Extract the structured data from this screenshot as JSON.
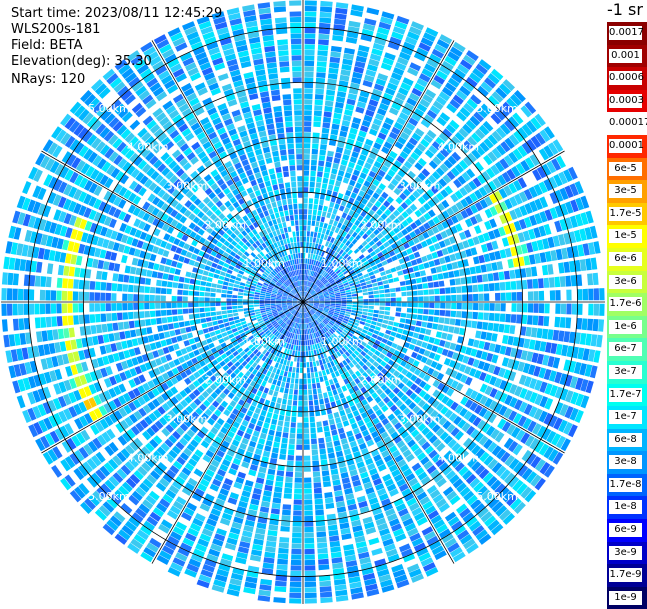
{
  "info": {
    "start_time": "Start time: 2023/08/11 12:45:29",
    "instrument": "WLS200s-181",
    "field": "Field: BETA",
    "elevation": "Elevation(deg): 35.30",
    "nrays": "NRays: 120"
  },
  "colorbar": {
    "unit_label": "-1 sr",
    "entries": [
      {
        "label": "0.0017",
        "color": "#8b0000"
      },
      {
        "label": "0.001",
        "color": "#a00000"
      },
      {
        "label": "0.0006",
        "color": "#c80000"
      },
      {
        "label": "0.0003",
        "color": "#e60000"
      },
      {
        "label": "0.00017",
        "color": "#ffffff"
      },
      {
        "label": "0.0001",
        "color": "#ff2800"
      },
      {
        "label": "6e-5",
        "color": "#ff6e00"
      },
      {
        "label": "3e-5",
        "color": "#ffa000"
      },
      {
        "label": "1.7e-5",
        "color": "#ffc800"
      },
      {
        "label": "1e-5",
        "color": "#ffff00"
      },
      {
        "label": "6e-6",
        "color": "#e6ff1e"
      },
      {
        "label": "3e-6",
        "color": "#c8ff3c"
      },
      {
        "label": "1.7e-6",
        "color": "#a0ff64"
      },
      {
        "label": "1e-6",
        "color": "#78ff8c"
      },
      {
        "label": "6e-7",
        "color": "#50ffb4"
      },
      {
        "label": "3e-7",
        "color": "#28ffd2"
      },
      {
        "label": "1.7e-7",
        "color": "#00fff0"
      },
      {
        "label": "1e-7",
        "color": "#00e6ff"
      },
      {
        "label": "6e-8",
        "color": "#00b4ff"
      },
      {
        "label": "3e-8",
        "color": "#0096ff"
      },
      {
        "label": "1.7e-8",
        "color": "#0064ff"
      },
      {
        "label": "1e-8",
        "color": "#0032ff"
      },
      {
        "label": "6e-9",
        "color": "#0000ff"
      },
      {
        "label": "3e-9",
        "color": "#0000c8"
      },
      {
        "label": "1.7e-9",
        "color": "#000096"
      },
      {
        "label": "1e-9",
        "color": "#000064"
      }
    ]
  },
  "chart_data": {
    "type": "heatmap",
    "projection": "polar PPI scan",
    "field": "BETA",
    "elevation_deg": 35.3,
    "nrays": 120,
    "range_ring_labels": [
      "1.00km",
      "2.00km",
      "3.00km",
      "4.00km",
      "5.00km"
    ],
    "range_rings_km": [
      1,
      2,
      3,
      4,
      5
    ],
    "max_range_km": 5.5,
    "spokes_deg": [
      0,
      30,
      60,
      90,
      120,
      150,
      180,
      210,
      240,
      270,
      300,
      330
    ],
    "typical_value": "1e-8 to 3e-7",
    "features": [
      {
        "description": "enhanced backscatter arc west",
        "azimuth_deg": [
          240,
          290
        ],
        "range_km": 4.3,
        "value": "1e-5"
      },
      {
        "description": "enhanced backscatter arc east",
        "azimuth_deg": [
          60,
          80
        ],
        "range_km": 4.0,
        "value": "6e-6"
      }
    ]
  }
}
